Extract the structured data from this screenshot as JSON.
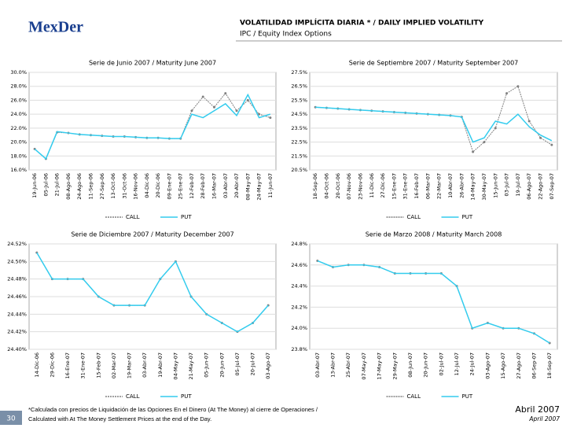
{
  "header": {
    "logo": "MexDer",
    "title": "VOLATILIDAD IMPLÍCITA DIARIA * / DAILY IMPLIED VOLATILITY",
    "subtitle": "IPC / Equity Index Options"
  },
  "footer": {
    "page": "30",
    "note1": "*Calculada con precios de Liquidación de las Opciones En el Dinero (At The Money) al cierre de Operaciones /",
    "note2": "Calculated with At The Money Settlement Prices at the end of the Day.",
    "date_es": "Abril 2007",
    "date_en": "April 2007"
  },
  "chart_data": [
    {
      "type": "line",
      "title": "Serie de Junio 2007 / Maturity June 2007",
      "categories": [
        "19-Jun-06",
        "05-Jul-06",
        "21-Jul-06",
        "08-Ago-06",
        "24-Ago-06",
        "11-Sep-06",
        "27-Sep-06",
        "13-Oct-06",
        "31-Oct-06",
        "16-Nov-06",
        "04-Dic-06",
        "20-Dic-06",
        "09-Ene-07",
        "25-Ene-07",
        "12-Feb-07",
        "28-Feb-07",
        "16-Mar-07",
        "03-Abr-07",
        "20-Abr-07",
        "08-May-07",
        "24-May-07",
        "11-Jun-07"
      ],
      "series": [
        {
          "name": "CALL",
          "color": "#808080",
          "values": [
            19.0,
            17.6,
            21.4,
            21.3,
            21.1,
            21.0,
            20.9,
            20.8,
            20.8,
            20.7,
            20.6,
            20.6,
            20.5,
            20.5,
            24.5,
            26.5,
            25.0,
            27.0,
            24.5,
            26.0,
            24.0,
            23.5
          ]
        },
        {
          "name": "PUT",
          "color": "#33ccee",
          "values": [
            19.0,
            17.6,
            21.5,
            21.3,
            21.1,
            21.0,
            20.9,
            20.8,
            20.8,
            20.7,
            20.6,
            20.6,
            20.5,
            20.5,
            24.0,
            23.5,
            24.5,
            25.5,
            23.8,
            26.8,
            23.5,
            24.0
          ]
        }
      ],
      "ylim": [
        16,
        30
      ],
      "yticks": [
        {
          "value": 16,
          "label": "16.0%"
        },
        {
          "value": 18,
          "label": "18.0%"
        },
        {
          "value": 20,
          "label": "20.0%"
        },
        {
          "value": 22,
          "label": "22.0%"
        },
        {
          "value": 24,
          "label": "24.0%"
        },
        {
          "value": 26,
          "label": "26.0%"
        },
        {
          "value": 28,
          "label": "28.0%"
        },
        {
          "value": 30,
          "label": "30.0%"
        }
      ],
      "grid": true,
      "legend": "bottom"
    },
    {
      "type": "line",
      "title": "Serie de Septiembre 2007 / Maturity September 2007",
      "categories": [
        "18-Sep-06",
        "04-Oct-06",
        "20-Oct-06",
        "07-Nov-06",
        "23-Nov-06",
        "11-Dic-06",
        "27-Dic-06",
        "15-Ene-07",
        "31-Ene-07",
        "16-Feb-07",
        "06-Mar-07",
        "22-Mar-07",
        "10-Abr-07",
        "26-Abr-07",
        "14-May-07",
        "30-May-07",
        "15-Jun-07",
        "03-Jul-07",
        "19-Jul-07",
        "06-Ago-07",
        "22-Ago-07",
        "07-Sep-07"
      ],
      "series": [
        {
          "name": "CALL",
          "color": "#808080",
          "values": [
            25.0,
            24.95,
            24.9,
            24.85,
            24.8,
            24.75,
            24.7,
            24.65,
            24.6,
            24.55,
            24.5,
            24.45,
            24.4,
            24.3,
            21.8,
            22.5,
            23.5,
            26.0,
            26.5,
            24.0,
            22.8,
            22.3
          ]
        },
        {
          "name": "PUT",
          "color": "#33ccee",
          "values": [
            25.0,
            24.95,
            24.9,
            24.85,
            24.8,
            24.75,
            24.7,
            24.65,
            24.6,
            24.55,
            24.5,
            24.45,
            24.4,
            24.3,
            22.5,
            22.8,
            24.0,
            23.8,
            24.5,
            23.6,
            23.0,
            22.6
          ]
        }
      ],
      "ylim": [
        20.5,
        27.5
      ],
      "yticks": [
        {
          "value": 20.5,
          "label": "20.5%"
        },
        {
          "value": 21.5,
          "label": "21.5%"
        },
        {
          "value": 22.5,
          "label": "22.5%"
        },
        {
          "value": 23.5,
          "label": "23.5%"
        },
        {
          "value": 24.5,
          "label": "24.5%"
        },
        {
          "value": 25.5,
          "label": "25.5%"
        },
        {
          "value": 26.5,
          "label": "26.5%"
        },
        {
          "value": 27.5,
          "label": "27.5%"
        }
      ],
      "grid": true,
      "legend": "bottom"
    },
    {
      "type": "line",
      "title": "Serie de Diciembre 2007 / Maturity December 2007",
      "categories": [
        "14-Dic-06",
        "29-Dic-06",
        "16-Ene-07",
        "31-Ene-07",
        "15-Feb-07",
        "02-Mar-07",
        "19-Mar-07",
        "03-Abr-07",
        "19-Abr-07",
        "04-May-07",
        "21-May-07",
        "05-Jun-07",
        "20-Jun-07",
        "05-Jul-07",
        "20-Jul-07",
        "03-Ago-07"
      ],
      "series": [
        {
          "name": "CALL",
          "color": "#808080",
          "values": [
            24.51,
            24.48,
            24.48,
            24.48,
            24.46,
            24.45,
            24.45,
            24.45,
            24.48,
            24.5,
            24.46,
            24.44,
            24.43,
            24.42,
            24.43,
            24.45
          ]
        },
        {
          "name": "PUT",
          "color": "#33ccee",
          "values": [
            24.51,
            24.48,
            24.48,
            24.48,
            24.46,
            24.45,
            24.45,
            24.45,
            24.48,
            24.5,
            24.46,
            24.44,
            24.43,
            24.42,
            24.43,
            24.45
          ]
        }
      ],
      "ylim": [
        24.4,
        24.52
      ],
      "yticks": [
        {
          "value": 24.4,
          "label": "24.40%"
        },
        {
          "value": 24.42,
          "label": "24.42%"
        },
        {
          "value": 24.44,
          "label": "24.44%"
        },
        {
          "value": 24.46,
          "label": "24.46%"
        },
        {
          "value": 24.48,
          "label": "24.48%"
        },
        {
          "value": 24.5,
          "label": "24.50%"
        },
        {
          "value": 24.52,
          "label": "24.52%"
        }
      ],
      "grid": true,
      "legend": "bottom"
    },
    {
      "type": "line",
      "title": "Serie de Marzo 2008 / Maturity March 2008",
      "categories": [
        "03-Abr-07",
        "13-Abr-07",
        "25-Abr-07",
        "07-May-07",
        "17-May-07",
        "29-May-07",
        "08-Jun-07",
        "20-Jun-07",
        "02-Jul-07",
        "12-Jul-07",
        "24-Jul-07",
        "03-Ago-07",
        "15-Ago-07",
        "27-Ago-07",
        "06-Sep-07",
        "18-Sep-07"
      ],
      "series": [
        {
          "name": "CALL",
          "color": "#808080",
          "values": [
            24.64,
            24.58,
            24.6,
            24.6,
            24.58,
            24.52,
            24.52,
            24.52,
            24.52,
            24.4,
            24.0,
            24.05,
            24.0,
            24.0,
            23.95,
            23.86
          ]
        },
        {
          "name": "PUT",
          "color": "#33ccee",
          "values": [
            24.64,
            24.58,
            24.6,
            24.6,
            24.58,
            24.52,
            24.52,
            24.52,
            24.52,
            24.4,
            24.0,
            24.05,
            24.0,
            24.0,
            23.95,
            23.86
          ]
        }
      ],
      "ylim": [
        23.8,
        24.8
      ],
      "yticks": [
        {
          "value": 23.8,
          "label": "23.8%"
        },
        {
          "value": 24.0,
          "label": "24.0%"
        },
        {
          "value": 24.2,
          "label": "24.2%"
        },
        {
          "value": 24.4,
          "label": "24.4%"
        },
        {
          "value": 24.6,
          "label": "24.6%"
        },
        {
          "value": 24.8,
          "label": "24.8%"
        }
      ],
      "grid": true,
      "legend": "bottom"
    }
  ]
}
